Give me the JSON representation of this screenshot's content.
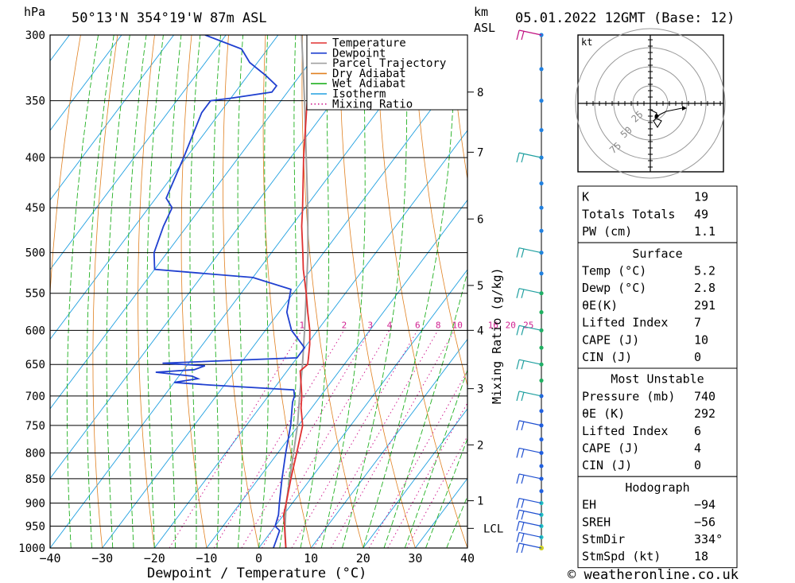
{
  "header": {
    "location": "50°13'N  354°19'W  87m  ASL",
    "datetime": "05.01.2022  12GMT  (Base: 12)",
    "hpa_label": "hPa",
    "km_label": "km",
    "asl_label": "ASL",
    "kt_label": "kt"
  },
  "footer": {
    "credit": "© weatheronline.co.uk"
  },
  "legend": [
    {
      "label": "Temperature",
      "color": "#e03030",
      "style": "solid"
    },
    {
      "label": "Dewpoint",
      "color": "#2040d0",
      "style": "solid"
    },
    {
      "label": "Parcel Trajectory",
      "color": "#a0a0a0",
      "style": "solid"
    },
    {
      "label": "Dry Adiabat",
      "color": "#e08020",
      "style": "solid"
    },
    {
      "label": "Wet Adiabat",
      "color": "#20b020",
      "style": "solid"
    },
    {
      "label": "Isotherm",
      "color": "#20a0e0",
      "style": "solid"
    },
    {
      "label": "Mixing Ratio",
      "color": "#d02090",
      "style": "dotted"
    }
  ],
  "chart_data": {
    "type": "line",
    "title": "",
    "xlabel": "Dewpoint / Temperature (°C)",
    "ylabel": "",
    "x_ticks": [
      -40,
      -30,
      -20,
      -10,
      0,
      10,
      20,
      30,
      40
    ],
    "xlim": [
      -40,
      40
    ],
    "pressure_levels": [
      300,
      350,
      400,
      450,
      500,
      550,
      600,
      650,
      700,
      750,
      800,
      850,
      900,
      950,
      1000
    ],
    "ylim_hpa": [
      1000,
      300
    ],
    "altitude_km_ticks": [
      {
        "km": "8",
        "p": 343
      },
      {
        "km": "7",
        "p": 395
      },
      {
        "km": "6",
        "p": 462
      },
      {
        "km": "5",
        "p": 540
      },
      {
        "km": "4",
        "p": 600
      },
      {
        "km": "3",
        "p": 688
      },
      {
        "km": "2",
        "p": 785
      },
      {
        "km": "1",
        "p": 895
      }
    ],
    "lcl_label": "LCL",
    "lcl_p": 955,
    "mixing_ratio_label": "Mixing Ratio (g/kg)",
    "mixing_ratio_values": [
      "1",
      "2",
      "3",
      "4",
      "6",
      "8",
      "10",
      "16",
      "20",
      "25"
    ],
    "mixing_ratio_label_p": 600,
    "series": [
      {
        "name": "Temperature",
        "color": "#e03030",
        "points": [
          [
            1000,
            5.2
          ],
          [
            975,
            3.5
          ],
          [
            950,
            1.8
          ],
          [
            925,
            0.0
          ],
          [
            900,
            -1.2
          ],
          [
            850,
            -3.8
          ],
          [
            800,
            -6.4
          ],
          [
            750,
            -9.2
          ],
          [
            720,
            -12.0
          ],
          [
            700,
            -13.6
          ],
          [
            680,
            -15.5
          ],
          [
            660,
            -17.5
          ],
          [
            650,
            -17.0
          ],
          [
            640,
            -17.8
          ],
          [
            620,
            -19.5
          ],
          [
            600,
            -21.5
          ],
          [
            575,
            -24.5
          ],
          [
            550,
            -27.5
          ],
          [
            520,
            -31.5
          ],
          [
            500,
            -34.0
          ],
          [
            470,
            -38.0
          ],
          [
            450,
            -40.5
          ],
          [
            400,
            -47.5
          ],
          [
            350,
            -55.0
          ],
          [
            330,
            -58.5
          ],
          [
            320,
            -58.0
          ],
          [
            300,
            -57.5
          ]
        ]
      },
      {
        "name": "Dewpoint",
        "color": "#2040d0",
        "points": [
          [
            1000,
            2.8
          ],
          [
            975,
            2.0
          ],
          [
            960,
            1.5
          ],
          [
            950,
            0.0
          ],
          [
            925,
            -1.0
          ],
          [
            900,
            -2.5
          ],
          [
            850,
            -5.5
          ],
          [
            800,
            -8.5
          ],
          [
            750,
            -11.5
          ],
          [
            710,
            -14.5
          ],
          [
            700,
            -15.0
          ],
          [
            690,
            -16.0
          ],
          [
            682,
            -33.0
          ],
          [
            678,
            -40.0
          ],
          [
            672,
            -36.0
          ],
          [
            668,
            -37.5
          ],
          [
            662,
            -45.0
          ],
          [
            658,
            -38.0
          ],
          [
            652,
            -36.5
          ],
          [
            648,
            -45.0
          ],
          [
            640,
            -20.0
          ],
          [
            625,
            -20.0
          ],
          [
            600,
            -25.0
          ],
          [
            575,
            -28.5
          ],
          [
            545,
            -31.0
          ],
          [
            530,
            -40.0
          ],
          [
            520,
            -60.0
          ],
          [
            500,
            -62.5
          ],
          [
            470,
            -64.5
          ],
          [
            450,
            -65.5
          ],
          [
            440,
            -68.0
          ],
          [
            400,
            -70.5
          ],
          [
            360,
            -73.5
          ],
          [
            350,
            -73.5
          ],
          [
            348,
            -70.0
          ],
          [
            343,
            -63.0
          ],
          [
            338,
            -63.0
          ],
          [
            330,
            -66.5
          ],
          [
            320,
            -71.5
          ],
          [
            310,
            -75.0
          ],
          [
            300,
            -84.0
          ]
        ]
      },
      {
        "name": "Parcel Trajectory",
        "color": "#a0a0a0",
        "points": [
          [
            1000,
            5.2
          ],
          [
            955,
            2.2
          ],
          [
            900,
            -1.2
          ],
          [
            850,
            -4.0
          ],
          [
            800,
            -7.0
          ],
          [
            750,
            -10.2
          ],
          [
            700,
            -14.0
          ],
          [
            650,
            -18.0
          ],
          [
            600,
            -22.5
          ],
          [
            550,
            -27.5
          ],
          [
            500,
            -33.0
          ],
          [
            450,
            -39.5
          ],
          [
            400,
            -47.0
          ],
          [
            350,
            -55.5
          ],
          [
            300,
            -65.5
          ]
        ]
      }
    ],
    "wind_barbs_hpa": [
      1000,
      975,
      950,
      925,
      900,
      850,
      800,
      750,
      700,
      650,
      600,
      550,
      500,
      400,
      300
    ]
  },
  "hodograph": {
    "ring_labels": [
      "25",
      "50",
      "75"
    ]
  },
  "indices": {
    "rows": [
      {
        "k": "K",
        "v": "19"
      },
      {
        "k": "Totals Totals",
        "v": "49"
      },
      {
        "k": "PW (cm)",
        "v": "1.1"
      }
    ]
  },
  "surface": {
    "title": "Surface",
    "rows": [
      {
        "k": "Temp (°C)",
        "v": "5.2"
      },
      {
        "k": "Dewp (°C)",
        "v": "2.8"
      },
      {
        "k": "θE(K)",
        "v": "291"
      },
      {
        "k": "Lifted Index",
        "v": "7"
      },
      {
        "k": "CAPE (J)",
        "v": "10"
      },
      {
        "k": "CIN (J)",
        "v": "0"
      }
    ]
  },
  "most_unstable": {
    "title": "Most Unstable",
    "rows": [
      {
        "k": "Pressure (mb)",
        "v": "740"
      },
      {
        "k": "θE (K)",
        "v": "292"
      },
      {
        "k": "Lifted Index",
        "v": "6"
      },
      {
        "k": "CAPE (J)",
        "v": "4"
      },
      {
        "k": "CIN (J)",
        "v": "0"
      }
    ]
  },
  "hodograph_table": {
    "title": "Hodograph",
    "rows": [
      {
        "k": "EH",
        "v": "-94"
      },
      {
        "k": "SREH",
        "v": "-56"
      },
      {
        "k": "StmDir",
        "v": "334°"
      },
      {
        "k": "StmSpd (kt)",
        "v": "18"
      }
    ]
  }
}
